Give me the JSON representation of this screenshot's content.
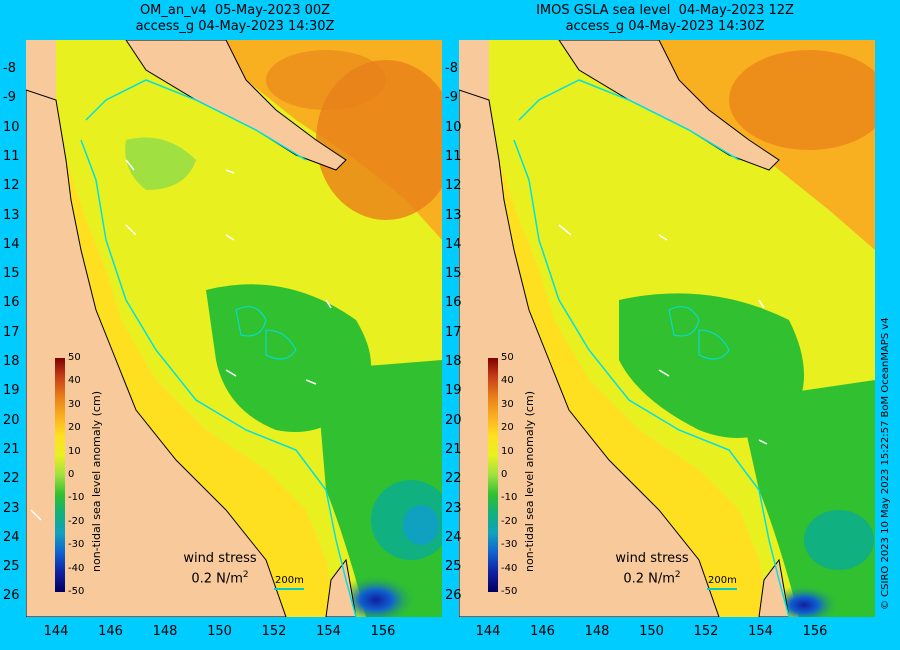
{
  "panels": [
    {
      "title_line1": "OM_an_v4  05-May-2023 00Z",
      "title_line2": "access_g 04-May-2023 14:30Z"
    },
    {
      "title_line1": "IMOS GSLA sea level  04-May-2023 12Z",
      "title_line2": "access_g 04-May-2023 14:30Z"
    }
  ],
  "lat_labels": [
    "-8",
    "-9",
    "10",
    "11",
    "12",
    "13",
    "14",
    "15",
    "16",
    "17",
    "18",
    "19",
    "20",
    "21",
    "22",
    "23",
    "24",
    "25",
    "26"
  ],
  "lon_labels": [
    "144",
    "146",
    "148",
    "150",
    "152",
    "154",
    "156"
  ],
  "colorbar": {
    "title": "non-tidal sea level anomaly (cm)",
    "ticks": [
      "50",
      "40",
      "30",
      "20",
      "10",
      "0",
      "-10",
      "-20",
      "-30",
      "-40",
      "-50"
    ],
    "colors": [
      "#800000",
      "#c8401a",
      "#e8801a",
      "#f8b020",
      "#ffe020",
      "#e8f020",
      "#a0e040",
      "#30c030",
      "#10b080",
      "#10a0c0",
      "#1060d0",
      "#1020a0",
      "#000060"
    ]
  },
  "wind_label": "wind stress",
  "wind_value": "0.2 N/m",
  "wind_exp": "2",
  "scale_label": "200m",
  "copyright": "© CSIRO 2023  10 May 2023 15:22:57 BoM OceanMAPS v4"
}
